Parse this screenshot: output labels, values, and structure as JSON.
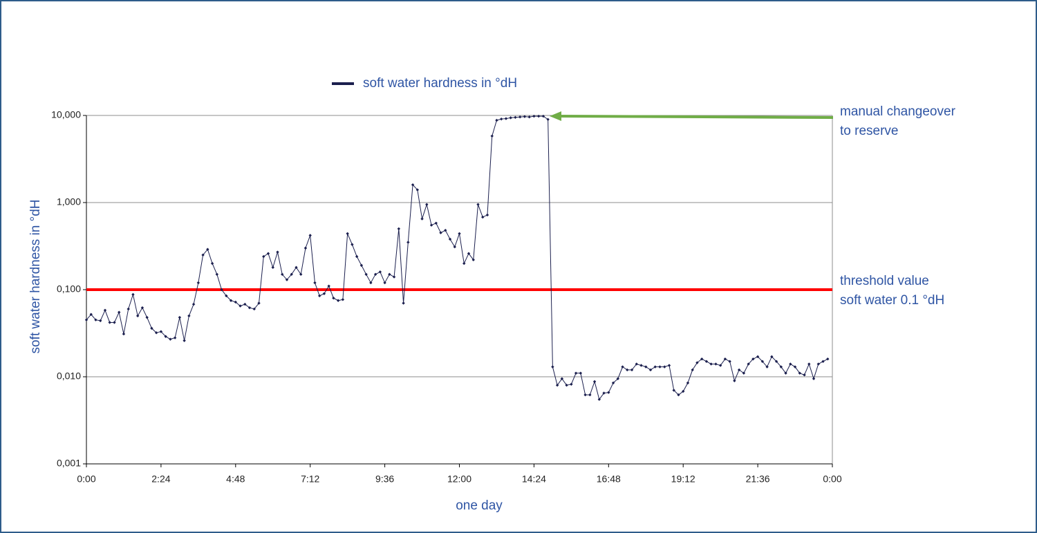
{
  "chart_data": {
    "type": "line",
    "y_label": "soft water hardness in °dH",
    "x_label": "one day",
    "log_y": true,
    "grid": true,
    "legend": "top",
    "xlim": [
      0,
      24
    ],
    "xticks": [
      {
        "value": 0,
        "label": "0:00"
      },
      {
        "value": 2.4,
        "label": "2:24"
      },
      {
        "value": 4.8,
        "label": "4:48"
      },
      {
        "value": 7.2,
        "label": "7:12"
      },
      {
        "value": 9.6,
        "label": "9:36"
      },
      {
        "value": 12,
        "label": "12:00"
      },
      {
        "value": 14.4,
        "label": "14:24"
      },
      {
        "value": 16.8,
        "label": "16:48"
      },
      {
        "value": 19.2,
        "label": "19:12"
      },
      {
        "value": 21.6,
        "label": "21:36"
      },
      {
        "value": 24,
        "label": "0:00"
      }
    ],
    "ylim": [
      0.001,
      10
    ],
    "yticks": [
      {
        "value": 10,
        "label": "10,000"
      },
      {
        "value": 1,
        "label": "1,000"
      },
      {
        "value": 0.1,
        "label": "0,100"
      },
      {
        "value": 0.01,
        "label": "0,010"
      },
      {
        "value": 0.001,
        "label": "0,001"
      }
    ],
    "x": [
      0,
      0.15,
      0.3,
      0.45,
      0.6,
      0.75,
      0.9,
      1.05,
      1.2,
      1.35,
      1.5,
      1.65,
      1.8,
      1.95,
      2.1,
      2.25,
      2.4,
      2.55,
      2.7,
      2.85,
      3,
      3.15,
      3.3,
      3.45,
      3.6,
      3.75,
      3.9,
      4.05,
      4.2,
      4.35,
      4.5,
      4.65,
      4.8,
      4.95,
      5.1,
      5.25,
      5.4,
      5.55,
      5.7,
      5.85,
      6,
      6.15,
      6.3,
      6.45,
      6.6,
      6.75,
      6.9,
      7.05,
      7.2,
      7.35,
      7.5,
      7.65,
      7.8,
      7.95,
      8.1,
      8.25,
      8.4,
      8.55,
      8.7,
      8.85,
      9,
      9.15,
      9.3,
      9.45,
      9.6,
      9.75,
      9.9,
      10.05,
      10.2,
      10.35,
      10.5,
      10.65,
      10.8,
      10.95,
      11.1,
      11.25,
      11.4,
      11.55,
      11.7,
      11.85,
      12,
      12.15,
      12.3,
      12.45,
      12.6,
      12.75,
      12.9,
      13.05,
      13.2,
      13.35,
      13.5,
      13.65,
      13.8,
      13.95,
      14.1,
      14.25,
      14.4,
      14.55,
      14.7,
      14.85,
      15,
      15.15,
      15.3,
      15.45,
      15.6,
      15.75,
      15.9,
      16.05,
      16.2,
      16.35,
      16.5,
      16.65,
      16.8,
      16.95,
      17.1,
      17.25,
      17.4,
      17.55,
      17.7,
      17.85,
      18,
      18.15,
      18.3,
      18.45,
      18.6,
      18.75,
      18.9,
      19.05,
      19.2,
      19.35,
      19.5,
      19.65,
      19.8,
      19.95,
      20.1,
      20.25,
      20.4,
      20.55,
      20.7,
      20.85,
      21,
      21.15,
      21.3,
      21.45,
      21.6,
      21.75,
      21.9,
      22.05,
      22.2,
      22.35,
      22.5,
      22.65,
      22.8,
      22.95,
      23.1,
      23.25,
      23.4,
      23.55,
      23.7,
      23.85
    ],
    "series": [
      {
        "name": "soft water hardness in °dH",
        "color": "#1b1f4e",
        "values": [
          0.045,
          0.052,
          0.045,
          0.044,
          0.058,
          0.042,
          0.042,
          0.055,
          0.031,
          0.06,
          0.088,
          0.05,
          0.062,
          0.048,
          0.036,
          0.032,
          0.033,
          0.029,
          0.027,
          0.028,
          0.048,
          0.026,
          0.05,
          0.068,
          0.12,
          0.25,
          0.29,
          0.2,
          0.15,
          0.1,
          0.085,
          0.075,
          0.072,
          0.065,
          0.068,
          0.062,
          0.06,
          0.07,
          0.24,
          0.26,
          0.18,
          0.27,
          0.15,
          0.13,
          0.15,
          0.18,
          0.15,
          0.3,
          0.42,
          0.12,
          0.085,
          0.09,
          0.11,
          0.08,
          0.075,
          0.077,
          0.44,
          0.33,
          0.24,
          0.19,
          0.15,
          0.12,
          0.15,
          0.16,
          0.12,
          0.15,
          0.14,
          0.5,
          0.07,
          0.35,
          1.6,
          1.4,
          0.65,
          0.95,
          0.55,
          0.58,
          0.45,
          0.48,
          0.38,
          0.31,
          0.44,
          0.2,
          0.26,
          0.22,
          0.95,
          0.68,
          0.72,
          5.8,
          8.8,
          9.1,
          9.2,
          9.4,
          9.5,
          9.6,
          9.7,
          9.6,
          9.8,
          9.8,
          9.8,
          9.0,
          0.013,
          0.008,
          0.0095,
          0.008,
          0.0082,
          0.011,
          0.011,
          0.0062,
          0.0062,
          0.0088,
          0.0055,
          0.0065,
          0.0066,
          0.0085,
          0.0095,
          0.013,
          0.012,
          0.012,
          0.014,
          0.0135,
          0.013,
          0.012,
          0.013,
          0.013,
          0.013,
          0.0135,
          0.007,
          0.0062,
          0.0068,
          0.0085,
          0.012,
          0.0145,
          0.016,
          0.015,
          0.014,
          0.014,
          0.0135,
          0.016,
          0.015,
          0.009,
          0.012,
          0.011,
          0.014,
          0.016,
          0.017,
          0.015,
          0.013,
          0.017,
          0.015,
          0.013,
          0.011,
          0.014,
          0.013,
          0.011,
          0.0105,
          0.014,
          0.0095,
          0.014,
          0.015,
          0.016
        ]
      }
    ],
    "threshold": {
      "value": 0.1,
      "color": "#ff0000",
      "label": [
        "threshold value",
        "soft water 0.1 °dH"
      ]
    },
    "arrow": {
      "value": 10,
      "color": "#70ad47",
      "label": [
        "manual changeover",
        "to reserve"
      ]
    }
  }
}
